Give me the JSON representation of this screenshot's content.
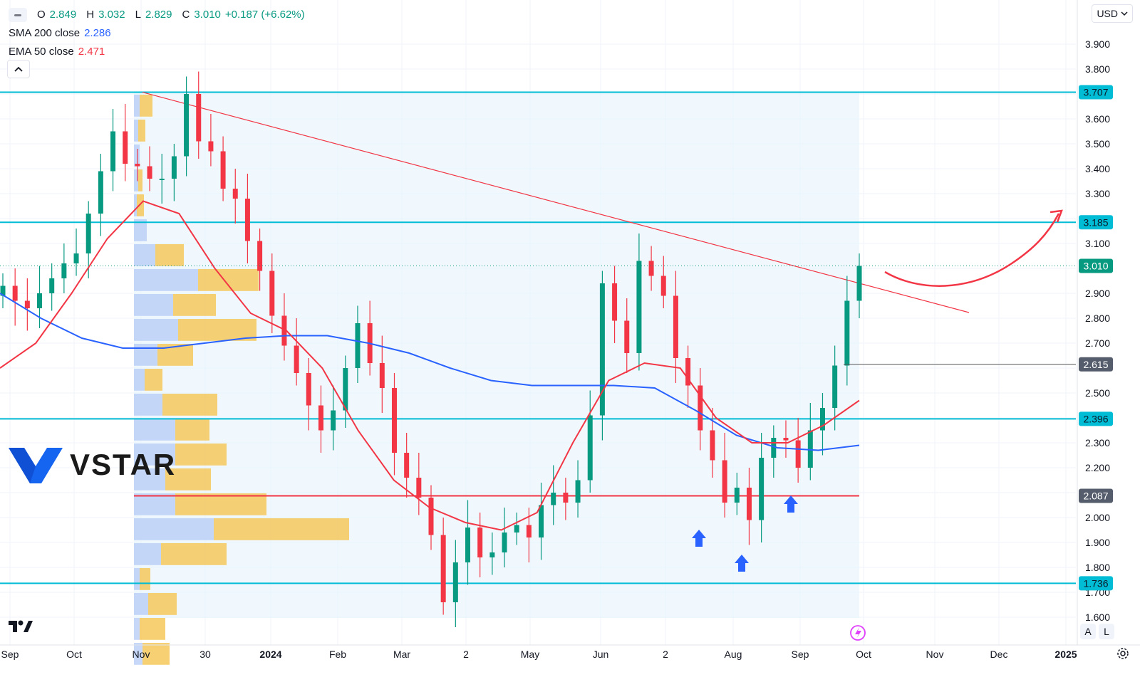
{
  "legend": {
    "ohlc": {
      "o_label": "O",
      "o": "2.849",
      "h_label": "H",
      "h": "3.032",
      "l_label": "L",
      "l": "2.829",
      "c_label": "C",
      "c": "3.010",
      "change": "+0.187 (+6.62%)"
    },
    "sma": {
      "label": "SMA 200 close",
      "value": "2.286",
      "color": "#2962ff"
    },
    "ema": {
      "label": "EMA 50 close",
      "value": "2.471",
      "color": "#f23645"
    }
  },
  "currency": "USD",
  "brand": {
    "name": "VSTAR"
  },
  "scale_buttons": {
    "auto": "A",
    "log": "L"
  },
  "icons": [
    "collapse-icon",
    "chevron-up-icon",
    "chevron-down-icon",
    "vstar-logo-icon",
    "tradingview-logo-icon",
    "lightning-icon",
    "gear-icon",
    "up-arrow-icon"
  ],
  "chart_data": {
    "type": "candlestick",
    "y_axis": {
      "ticks": [
        "1.600",
        "1.700",
        "1.800",
        "1.900",
        "2.000",
        "2.100",
        "2.200",
        "2.300",
        "2.400",
        "2.500",
        "2.600",
        "2.700",
        "2.800",
        "2.900",
        "3.000",
        "3.100",
        "3.200",
        "3.300",
        "3.400",
        "3.500",
        "3.600",
        "3.700",
        "3.800",
        "3.900"
      ],
      "range": [
        1.6,
        3.9
      ]
    },
    "x_axis": {
      "labels": [
        "Sep",
        "Oct",
        "Nov",
        "30",
        "2024",
        "Feb",
        "Mar",
        "2",
        "May",
        "Jun",
        "2",
        "Aug",
        "Sep",
        "Oct",
        "Nov",
        "Dec",
        "2025"
      ]
    },
    "price_tags": [
      {
        "value": "3.707",
        "kind": "level"
      },
      {
        "value": "3.185",
        "kind": "level"
      },
      {
        "value": "3.010",
        "kind": "last"
      },
      {
        "value": "2.615",
        "kind": "marker"
      },
      {
        "value": "2.396",
        "kind": "level"
      },
      {
        "value": "2.087",
        "kind": "level"
      },
      {
        "value": "1.736",
        "kind": "level"
      }
    ],
    "horizontal_levels": [
      {
        "price": 3.707,
        "color": "#00bcd4"
      },
      {
        "price": 3.185,
        "color": "#00bcd4"
      },
      {
        "price": 2.396,
        "color": "#00bcd4"
      },
      {
        "price": 1.736,
        "color": "#00bcd4"
      },
      {
        "price": 2.087,
        "color": "#f23645"
      }
    ],
    "trendline": {
      "from": [
        "Nov 2023",
        3.707
      ],
      "to": [
        "Oct 2024",
        2.82
      ],
      "color": "#f23645"
    },
    "last_price": 3.01,
    "ohlc_closes_weekly": [
      2.93,
      2.87,
      2.84,
      2.9,
      2.96,
      3.02,
      3.06,
      3.22,
      3.39,
      3.55,
      3.42,
      3.41,
      3.36,
      3.36,
      3.45,
      3.7,
      3.51,
      3.47,
      3.32,
      3.28,
      3.11,
      2.99,
      2.81,
      2.69,
      2.58,
      2.45,
      2.35,
      2.43,
      2.6,
      2.78,
      2.62,
      2.52,
      2.26,
      2.16,
      2.08,
      1.93,
      1.66,
      1.82,
      1.96,
      1.84,
      1.86,
      1.94,
      1.97,
      1.92,
      2.05,
      2.1,
      2.06,
      2.15,
      2.41,
      2.94,
      2.79,
      2.66,
      3.03,
      2.97,
      2.89,
      2.64,
      2.53,
      2.35,
      2.23,
      2.06,
      2.12,
      1.99,
      2.24,
      2.32,
      2.31,
      2.2,
      2.35,
      2.44,
      2.61,
      2.87,
      3.01
    ],
    "sma200_points": [
      2.9,
      2.8,
      2.72,
      2.68,
      2.68,
      2.7,
      2.72,
      2.73,
      2.73,
      2.7,
      2.66,
      2.6,
      2.55,
      2.53,
      2.53,
      2.53,
      2.52,
      2.43,
      2.33,
      2.28,
      2.27,
      2.29
    ],
    "ema50_points": [
      2.6,
      2.7,
      2.9,
      3.12,
      3.27,
      3.22,
      3.0,
      2.82,
      2.75,
      2.6,
      2.35,
      2.15,
      2.04,
      1.98,
      1.95,
      2.02,
      2.3,
      2.55,
      2.62,
      2.6,
      2.4,
      2.3,
      2.3,
      2.37,
      2.47
    ],
    "volume_profile": [
      {
        "price": 3.65,
        "buy": 8,
        "sell": 18
      },
      {
        "price": 3.55,
        "buy": 6,
        "sell": 10
      },
      {
        "price": 3.45,
        "buy": 8,
        "sell": 0
      },
      {
        "price": 3.35,
        "buy": 6,
        "sell": 6
      },
      {
        "price": 3.25,
        "buy": 4,
        "sell": 10
      },
      {
        "price": 3.15,
        "buy": 18,
        "sell": 0
      },
      {
        "price": 3.05,
        "buy": 30,
        "sell": 40
      },
      {
        "price": 2.95,
        "buy": 90,
        "sell": 85
      },
      {
        "price": 2.85,
        "buy": 55,
        "sell": 60
      },
      {
        "price": 2.75,
        "buy": 62,
        "sell": 110
      },
      {
        "price": 2.65,
        "buy": 33,
        "sell": 50
      },
      {
        "price": 2.55,
        "buy": 15,
        "sell": 25
      },
      {
        "price": 2.45,
        "buy": 40,
        "sell": 77
      },
      {
        "price": 2.35,
        "buy": 58,
        "sell": 48
      },
      {
        "price": 2.25,
        "buy": 58,
        "sell": 72
      },
      {
        "price": 2.15,
        "buy": 44,
        "sell": 64
      },
      {
        "price": 2.05,
        "buy": 58,
        "sell": 128
      },
      {
        "price": 1.95,
        "buy": 112,
        "sell": 190
      },
      {
        "price": 1.85,
        "buy": 38,
        "sell": 92
      },
      {
        "price": 1.75,
        "buy": 8,
        "sell": 15
      },
      {
        "price": 1.65,
        "buy": 20,
        "sell": 40
      },
      {
        "price": 1.55,
        "buy": 8,
        "sell": 36
      },
      {
        "price": 1.45,
        "buy": 12,
        "sell": 38
      }
    ],
    "annotations": [
      {
        "type": "up-arrow",
        "where": "Jul 2024 low"
      },
      {
        "type": "up-arrow",
        "where": "Aug 2024 low"
      },
      {
        "type": "up-arrow",
        "where": "late Aug 2024 low"
      },
      {
        "type": "curved-arrow",
        "where": "projection toward 3.185 level"
      }
    ]
  }
}
